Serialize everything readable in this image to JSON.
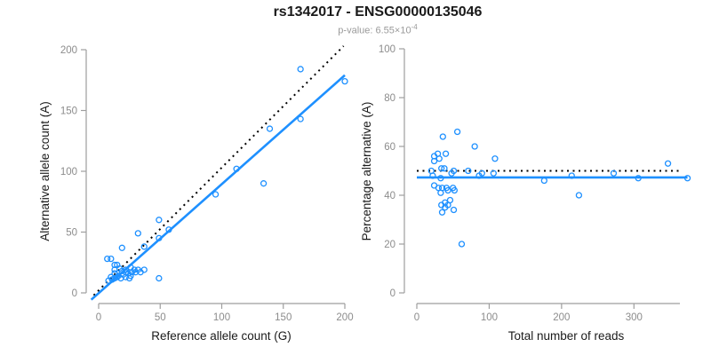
{
  "header": {
    "title": "rs1342017 - ENSG00000135046",
    "subtitle_prefix": "p-value: 6.55×10",
    "subtitle_exponent": "-4"
  },
  "colors": {
    "accent_blue": "#1E90FF",
    "dotted_black": "#000000",
    "axis_line": "#9e9e9e",
    "tick_label": "#8c8c8c",
    "axis_title": "#1a1a1a"
  },
  "chart_data": [
    {
      "type": "scatter",
      "xlabel": "Reference allele count (G)",
      "ylabel": "Alternative allele count (A)",
      "xlim": [
        0,
        200
      ],
      "ylim": [
        0,
        200
      ],
      "xticks": [
        0,
        50,
        100,
        150,
        200
      ],
      "yticks": [
        0,
        50,
        100,
        150,
        200
      ],
      "grid": false,
      "legend": null,
      "points": [
        [
          7,
          28
        ],
        [
          10,
          28
        ],
        [
          13,
          23
        ],
        [
          15,
          23
        ],
        [
          13,
          19
        ],
        [
          17,
          20
        ],
        [
          19,
          18
        ],
        [
          13,
          16
        ],
        [
          16,
          14
        ],
        [
          10,
          13
        ],
        [
          8,
          10
        ],
        [
          11,
          11
        ],
        [
          13,
          12
        ],
        [
          15,
          13
        ],
        [
          18,
          12
        ],
        [
          20,
          15
        ],
        [
          22,
          13
        ],
        [
          25,
          12
        ],
        [
          22,
          17
        ],
        [
          22,
          19
        ],
        [
          24,
          16
        ],
        [
          26,
          14
        ],
        [
          26,
          21
        ],
        [
          27,
          17
        ],
        [
          29,
          19
        ],
        [
          30,
          17
        ],
        [
          32,
          19
        ],
        [
          34,
          17
        ],
        [
          37,
          19
        ],
        [
          19,
          37
        ],
        [
          32,
          49
        ],
        [
          37,
          38
        ],
        [
          49,
          45
        ],
        [
          49,
          60
        ],
        [
          57,
          52
        ],
        [
          49,
          12
        ],
        [
          95,
          81
        ],
        [
          112,
          102
        ],
        [
          134,
          90
        ],
        [
          139,
          135
        ],
        [
          164,
          143
        ],
        [
          164,
          184
        ],
        [
          200,
          174
        ]
      ],
      "lines": [
        {
          "name": "identity",
          "style": "dotted",
          "color": "#000000",
          "width": 2,
          "from": [
            -4,
            -2
          ],
          "to": [
            199,
            203
          ]
        },
        {
          "name": "fit",
          "style": "solid",
          "color": "#1E90FF",
          "width": 2.6,
          "from": [
            -6,
            -5.6
          ],
          "to": [
            200,
            179
          ]
        }
      ]
    },
    {
      "type": "scatter",
      "xlabel": "Total number of reads",
      "ylabel": "Percentage alternative (A)",
      "xlim": [
        0,
        350
      ],
      "ylim": [
        0,
        100
      ],
      "xticks": [
        0,
        100,
        200,
        300
      ],
      "yticks": [
        0,
        20,
        40,
        60,
        80,
        100
      ],
      "grid": false,
      "legend": null,
      "points": [
        [
          24,
          56
        ],
        [
          29,
          57
        ],
        [
          24,
          54
        ],
        [
          31,
          55
        ],
        [
          40,
          57
        ],
        [
          36,
          64
        ],
        [
          56,
          66
        ],
        [
          80,
          60
        ],
        [
          108,
          55
        ],
        [
          20,
          50
        ],
        [
          34,
          51
        ],
        [
          38,
          51
        ],
        [
          48,
          49
        ],
        [
          71,
          50
        ],
        [
          86,
          48
        ],
        [
          106,
          49
        ],
        [
          22,
          48
        ],
        [
          33,
          47
        ],
        [
          51,
          50
        ],
        [
          90,
          49
        ],
        [
          24,
          44
        ],
        [
          30,
          43
        ],
        [
          35,
          43
        ],
        [
          41,
          43
        ],
        [
          43,
          42
        ],
        [
          50,
          43
        ],
        [
          52,
          42
        ],
        [
          33,
          41
        ],
        [
          46,
          38
        ],
        [
          39,
          37
        ],
        [
          43,
          36
        ],
        [
          34,
          36
        ],
        [
          39,
          35
        ],
        [
          35,
          33
        ],
        [
          51,
          34
        ],
        [
          62,
          20
        ],
        [
          176,
          46
        ],
        [
          214,
          48
        ],
        [
          224,
          40
        ],
        [
          272,
          49
        ],
        [
          306,
          47
        ],
        [
          347,
          53
        ],
        [
          374,
          47
        ]
      ],
      "lines": [
        {
          "name": "expected-50pct",
          "style": "dotted",
          "color": "#000000",
          "width": 2,
          "from": [
            0,
            50
          ],
          "to": [
            366,
            50
          ]
        },
        {
          "name": "fit",
          "style": "solid",
          "color": "#1E90FF",
          "width": 2.6,
          "from": [
            0,
            47.3
          ],
          "to": [
            374,
            47.3
          ]
        }
      ]
    }
  ]
}
